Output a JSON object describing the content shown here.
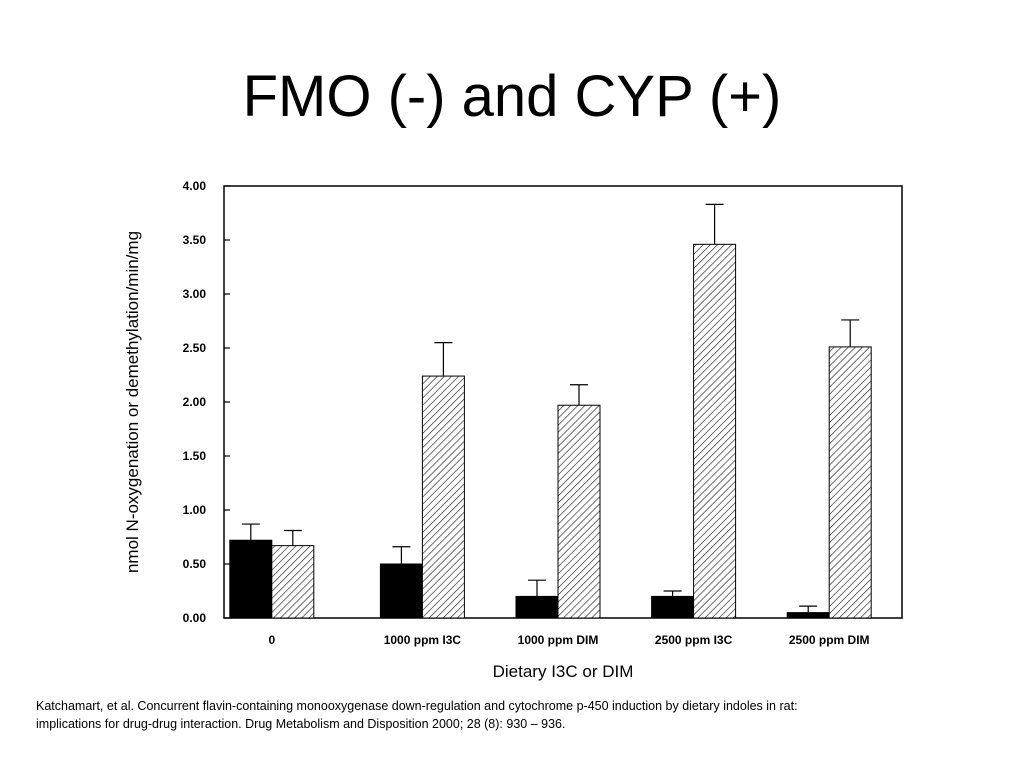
{
  "slide": {
    "title": "FMO (-) and CYP (+)",
    "citation_line1": "Katchamart, et al. Concurrent flavin-containing monooxygenase down-regulation and cytochrome p-450 induction by dietary indoles in rat:",
    "citation_line2": "implications for drug-drug interaction. Drug Metabolism and Disposition 2000; 28 (8): 930 – 936."
  },
  "chart_data": {
    "type": "bar",
    "title": "",
    "xlabel": "Dietary I3C or DIM",
    "ylabel": "nmol N-oxygenation or demethylation/min/mg",
    "ylim": [
      0,
      4
    ],
    "yticks": [
      "0.00",
      "0.50",
      "1.00",
      "1.50",
      "2.00",
      "2.50",
      "3.00",
      "3.50",
      "4.00"
    ],
    "categories": [
      "0",
      "1000 ppm I3C",
      "1000 ppm DIM",
      "2500 ppm I3C",
      "2500 ppm DIM"
    ],
    "grid": false,
    "legend": "none",
    "series": [
      {
        "fill": "solid-black",
        "values": [
          0.72,
          0.5,
          0.2,
          0.2,
          0.05
        ],
        "errors": [
          0.15,
          0.16,
          0.15,
          0.05,
          0.06
        ]
      },
      {
        "fill": "hatched",
        "values": [
          0.67,
          2.24,
          1.97,
          3.46,
          2.51
        ],
        "errors": [
          0.14,
          0.31,
          0.19,
          0.37,
          0.25
        ]
      }
    ]
  }
}
